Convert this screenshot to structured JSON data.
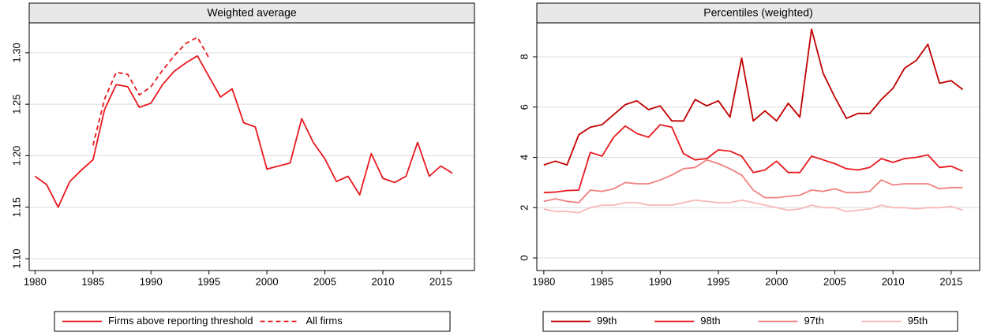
{
  "chart_data": [
    {
      "type": "line",
      "title": "Weighted average",
      "x": [
        1980,
        1981,
        1982,
        1983,
        1984,
        1985,
        1986,
        1987,
        1988,
        1989,
        1990,
        1991,
        1992,
        1993,
        1994,
        1995,
        1996,
        1997,
        1998,
        1999,
        2000,
        2001,
        2002,
        2003,
        2004,
        2005,
        2006,
        2007,
        2008,
        2009,
        2010,
        2011,
        2012,
        2013,
        2014,
        2015,
        2016
      ],
      "series": [
        {
          "name": "Firms above reporting threshold",
          "color": "#e8191e",
          "line_style": "solid",
          "values": [
            1.18,
            1.172,
            1.15,
            1.175,
            1.186,
            1.196,
            1.245,
            1.269,
            1.267,
            1.247,
            1.251,
            1.269,
            1.282,
            1.29,
            1.297,
            1.277,
            1.257,
            1.265,
            1.232,
            1.228,
            1.187,
            1.19,
            1.193,
            1.236,
            1.213,
            1.197,
            1.175,
            1.18,
            1.162,
            1.202,
            1.178,
            1.174,
            1.18,
            1.213,
            1.18,
            1.19,
            1.183
          ]
        },
        {
          "name": "All firms",
          "color": "#e8191e",
          "line_style": "dashed",
          "values": [
            null,
            null,
            null,
            null,
            null,
            1.21,
            1.255,
            1.281,
            1.279,
            1.259,
            1.267,
            1.283,
            1.297,
            1.309,
            1.315,
            1.295,
            null,
            null,
            null,
            null,
            null,
            null,
            null,
            null,
            null,
            null,
            null,
            null,
            null,
            null,
            null,
            null,
            null,
            null,
            null,
            null,
            null
          ]
        }
      ],
      "xlim": [
        1979.5,
        2017.9
      ],
      "xticks": [
        1980,
        1985,
        1990,
        1995,
        2000,
        2005,
        2010,
        2015
      ],
      "ylim": [
        1.0885,
        1.329
      ],
      "yticks": [
        {
          "value": 1.1,
          "label": "1.10"
        },
        {
          "value": 1.15,
          "label": "1.15"
        },
        {
          "value": 1.2,
          "label": "1.20"
        },
        {
          "value": 1.25,
          "label": "1.25"
        },
        {
          "value": 1.3,
          "label": "1.30"
        }
      ],
      "grid": true,
      "legend": "bottom"
    },
    {
      "type": "line",
      "title": "Percentiles (weighted)",
      "x": [
        1980,
        1981,
        1982,
        1983,
        1984,
        1985,
        1986,
        1987,
        1988,
        1989,
        1990,
        1991,
        1992,
        1993,
        1994,
        1995,
        1996,
        1997,
        1998,
        1999,
        2000,
        2001,
        2002,
        2003,
        2004,
        2005,
        2006,
        2007,
        2008,
        2009,
        2010,
        2011,
        2012,
        2013,
        2014,
        2015,
        2016
      ],
      "series": [
        {
          "name": "99th",
          "color": "#c00000",
          "line_style": "solid",
          "values": [
            3.7,
            3.85,
            3.7,
            4.9,
            5.2,
            5.3,
            5.7,
            6.1,
            6.25,
            5.9,
            6.05,
            5.45,
            5.45,
            6.3,
            6.05,
            6.25,
            5.6,
            7.95,
            5.45,
            5.85,
            5.45,
            6.15,
            5.6,
            9.1,
            7.35,
            6.4,
            5.55,
            5.75,
            5.75,
            6.3,
            6.75,
            7.55,
            7.85,
            8.5,
            6.95,
            7.05,
            6.7
          ]
        },
        {
          "name": "98th",
          "color": "#e8191e",
          "line_style": "solid",
          "values": [
            2.6,
            2.62,
            2.68,
            2.7,
            4.2,
            4.05,
            4.8,
            5.25,
            4.95,
            4.8,
            5.3,
            5.2,
            4.15,
            3.9,
            3.95,
            4.3,
            4.25,
            4.05,
            3.4,
            3.5,
            3.85,
            3.4,
            3.4,
            4.05,
            3.9,
            3.75,
            3.55,
            3.5,
            3.6,
            3.95,
            3.8,
            3.95,
            4.0,
            4.1,
            3.6,
            3.65,
            3.45
          ]
        },
        {
          "name": "97th",
          "color": "#f08080",
          "line_style": "solid",
          "values": [
            2.25,
            2.35,
            2.25,
            2.2,
            2.7,
            2.65,
            2.75,
            3.0,
            2.95,
            2.95,
            3.1,
            3.3,
            3.55,
            3.6,
            3.9,
            3.75,
            3.55,
            3.3,
            2.7,
            2.4,
            2.4,
            2.45,
            2.5,
            2.7,
            2.65,
            2.75,
            2.6,
            2.6,
            2.65,
            3.1,
            2.9,
            2.95,
            2.95,
            2.95,
            2.75,
            2.8,
            2.8
          ]
        },
        {
          "name": "95th",
          "color": "#f7b8b8",
          "line_style": "solid",
          "values": [
            1.95,
            1.85,
            1.85,
            1.8,
            2.0,
            2.1,
            2.1,
            2.2,
            2.2,
            2.1,
            2.1,
            2.1,
            2.2,
            2.3,
            2.25,
            2.2,
            2.2,
            2.3,
            2.2,
            2.1,
            2.0,
            1.9,
            1.95,
            2.1,
            2.0,
            2.0,
            1.85,
            1.9,
            1.95,
            2.1,
            2.0,
            2.0,
            1.95,
            2.0,
            2.0,
            2.05,
            1.9
          ]
        }
      ],
      "xlim": [
        1979.4,
        2017.45
      ],
      "xticks": [
        1980,
        1985,
        1990,
        1995,
        2000,
        2005,
        2010,
        2015
      ],
      "ylim": [
        -0.5,
        9.35
      ],
      "yticks": [
        0,
        2,
        4,
        6,
        8
      ],
      "grid": true,
      "legend": "bottom"
    }
  ]
}
